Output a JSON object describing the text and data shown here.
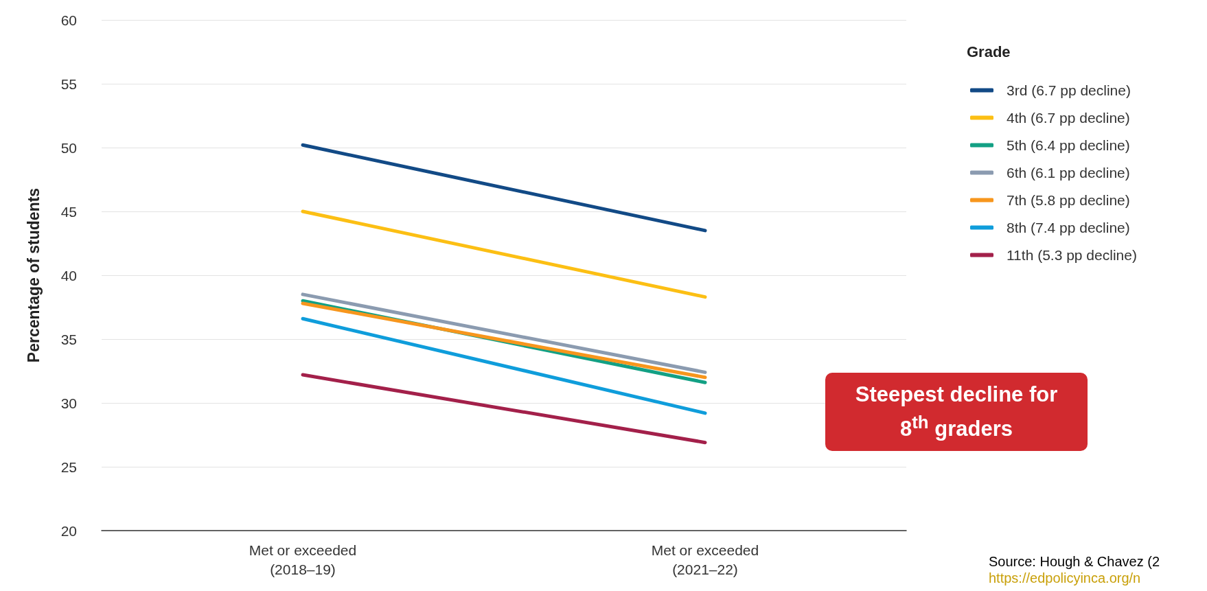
{
  "chart_data": {
    "type": "line",
    "ylabel": "Percentage of students",
    "legend_title": "Grade",
    "categories": [
      "Met or exceeded\n(2018–19)",
      "Met or exceeded\n(2021–22)"
    ],
    "series": [
      {
        "name": "3rd (6.7 pp decline)",
        "color": "#124a86",
        "values": [
          50.2,
          43.5
        ]
      },
      {
        "name": "4th (6.7 pp decline)",
        "color": "#fcbf14",
        "values": [
          45.0,
          38.3
        ]
      },
      {
        "name": "5th (6.4 pp decline)",
        "color": "#13a084",
        "values": [
          38.0,
          31.6
        ]
      },
      {
        "name": "6th (6.1 pp decline)",
        "color": "#8b9bb0",
        "values": [
          38.5,
          32.4
        ]
      },
      {
        "name": "7th (5.8 pp decline)",
        "color": "#f7961d",
        "values": [
          37.8,
          32.0
        ]
      },
      {
        "name": "8th (7.4 pp decline)",
        "color": "#0f9ddb",
        "values": [
          36.6,
          29.2
        ]
      },
      {
        "name": "11th (5.3 pp decline)",
        "color": "#a3204a",
        "values": [
          32.2,
          26.9
        ]
      }
    ],
    "ylim": [
      20,
      60
    ],
    "yticks": [
      20,
      25,
      30,
      35,
      40,
      45,
      50,
      55,
      60
    ],
    "grid": "y",
    "legend": "right",
    "marker": "none",
    "line_style": "solid",
    "annotations": [
      "Steepest decline for 8$^{th}$ graders",
      "Source: Hough & Chavez (2",
      "https://edpolicyinca.org/n"
    ]
  }
}
